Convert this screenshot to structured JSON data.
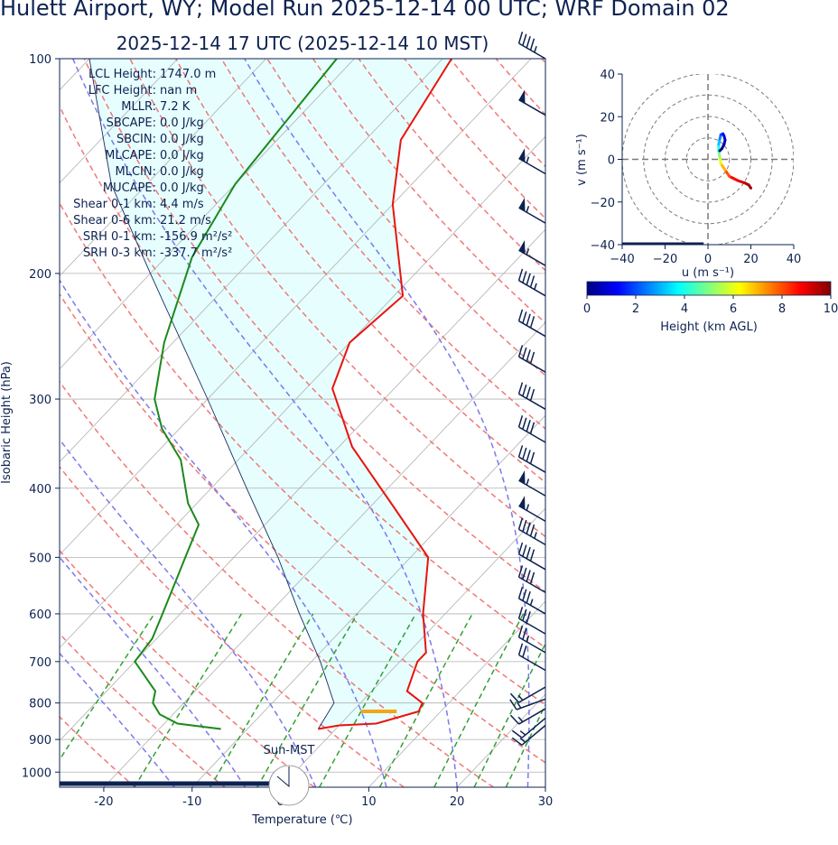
{
  "title": "Hulett Airport, WY; Model Run 2025-12-14 00 UTC; WRF Domain 02",
  "subtitle": "2025-12-14 17 UTC  (2025-12-14 10 MST)",
  "colors": {
    "temperature": "#e8140e",
    "dewpoint": "#1a8a1a",
    "parcel": "#1a2a5e",
    "cape_shade": "#e6fefe",
    "dry_adiabat": "#f07878",
    "moist_adiabat": "#7a7aee",
    "mixing_ratio": "#33a033",
    "isotherm": "#b0b0b0",
    "lcl_marker": "#f2a516",
    "barb": "#0d2250"
  },
  "stats": [
    {
      "label": "LCL Height:",
      "value": "1747.0 m"
    },
    {
      "label": "LFC Height:",
      "value": "nan m"
    },
    {
      "label": "MLLR:",
      "value": "7.2 K"
    },
    {
      "label": "SBCAPE:",
      "value": "0.0 J/kg"
    },
    {
      "label": "SBCIN:",
      "value": "0.0 J/kg"
    },
    {
      "label": "MLCAPE:",
      "value": "0.0 J/kg"
    },
    {
      "label": "MLCIN:",
      "value": "0.0 J/kg"
    },
    {
      "label": "MUCAPE:",
      "value": "0.0 J/kg"
    },
    {
      "label": "Shear 0-1 km:",
      "value": "4.4 m/s"
    },
    {
      "label": "Shear 0-6 km:",
      "value": "21.2 m/s"
    },
    {
      "label": "SRH 0-1 km:",
      "value": "-156.9 m²/s²"
    },
    {
      "label": "SRH 0-3 km:",
      "value": "-337.7 m²/s²"
    }
  ],
  "sun_label": "Sun-MST",
  "chart_data": [
    {
      "type": "line",
      "subtype": "skew-T log-p",
      "xlabel": "Temperature (℃)",
      "ylabel": "Isobaric Height (hPa)",
      "xlim": [
        -25,
        30
      ],
      "ylim": [
        1050,
        100
      ],
      "y_scale": "log",
      "x_ticks": [
        -20,
        -10,
        0,
        10,
        20,
        30
      ],
      "y_ticks": [
        100,
        200,
        300,
        400,
        500,
        600,
        700,
        800,
        900,
        1000
      ],
      "series": [
        {
          "key": "temperature",
          "pressure": [
            100,
            130,
            160,
            215,
            250,
            290,
            350,
            420,
            500,
            600,
            680,
            700,
            770,
            800,
            822,
            855,
            860,
            870
          ],
          "values": [
            -59,
            -56,
            -50,
            -39,
            -40,
            -37,
            -28.5,
            -18,
            -8,
            -2.5,
            2,
            2,
            4,
            7,
            7.5,
            4,
            0,
            -2
          ]
        },
        {
          "key": "dewpoint",
          "pressure": [
            100,
            150,
            190,
            250,
            300,
            330,
            365,
            420,
            450,
            500,
            600,
            650,
            700,
            770,
            800,
            830,
            855,
            870
          ],
          "values": [
            -72,
            -70,
            -67,
            -61,
            -56,
            -52,
            -46.5,
            -41,
            -37.5,
            -35.5,
            -32,
            -30.5,
            -30,
            -24.5,
            -23.5,
            -21.5,
            -18.5,
            -13
          ]
        },
        {
          "key": "parcel",
          "pressure": [
            100,
            150,
            200,
            250,
            300,
            400,
            500,
            600,
            700,
            800,
            870
          ],
          "values": [
            -100,
            -84,
            -70,
            -59,
            -50,
            -36,
            -25,
            -16.5,
            -9,
            -3,
            -2
          ]
        }
      ],
      "lcl": {
        "pressure": 822,
        "temperature_range": [
          1,
          5
        ]
      },
      "winds": [
        {
          "p": 100,
          "spd": 45,
          "dir": 300
        },
        {
          "p": 120,
          "spd": 50,
          "dir": 300
        },
        {
          "p": 145,
          "spd": 55,
          "dir": 300
        },
        {
          "p": 170,
          "spd": 55,
          "dir": 300
        },
        {
          "p": 195,
          "spd": 55,
          "dir": 300
        },
        {
          "p": 215,
          "spd": 45,
          "dir": 300
        },
        {
          "p": 245,
          "spd": 40,
          "dir": 300
        },
        {
          "p": 275,
          "spd": 40,
          "dir": 300
        },
        {
          "p": 310,
          "spd": 40,
          "dir": 300
        },
        {
          "p": 345,
          "spd": 40,
          "dir": 300
        },
        {
          "p": 380,
          "spd": 40,
          "dir": 300
        },
        {
          "p": 410,
          "spd": 55,
          "dir": 300
        },
        {
          "p": 445,
          "spd": 55,
          "dir": 300
        },
        {
          "p": 480,
          "spd": 45,
          "dir": 300
        },
        {
          "p": 520,
          "spd": 40,
          "dir": 300
        },
        {
          "p": 560,
          "spd": 40,
          "dir": 300
        },
        {
          "p": 600,
          "spd": 35,
          "dir": 300
        },
        {
          "p": 640,
          "spd": 30,
          "dir": 300
        },
        {
          "p": 680,
          "spd": 25,
          "dir": 300
        },
        {
          "p": 720,
          "spd": 20,
          "dir": 300
        },
        {
          "p": 760,
          "spd": 15,
          "dir": 240
        },
        {
          "p": 790,
          "spd": 15,
          "dir": 250
        },
        {
          "p": 815,
          "spd": 15,
          "dir": 240
        },
        {
          "p": 840,
          "spd": 15,
          "dir": 230
        },
        {
          "p": 860,
          "spd": 15,
          "dir": 230
        }
      ]
    },
    {
      "type": "line",
      "subtype": "hodograph",
      "xlabel": "u (m s⁻¹)",
      "ylabel": "v (m s⁻¹)",
      "xlim": [
        -40,
        40
      ],
      "ylim": [
        -40,
        40
      ],
      "x_ticks": [
        -40,
        -20,
        0,
        20,
        40
      ],
      "y_ticks": [
        -40,
        -20,
        0,
        20,
        40
      ],
      "rings": [
        10,
        20,
        30,
        40
      ],
      "u": [
        20,
        19,
        17,
        14,
        10,
        8,
        6,
        5.5,
        5,
        5,
        5.5,
        6,
        7,
        7.5,
        8,
        7.5,
        6.5,
        5.5
      ],
      "v": [
        -13.5,
        -12,
        -11,
        -10,
        -8,
        -5,
        -2,
        1,
        4,
        7,
        9.5,
        11.5,
        12,
        11,
        9,
        7,
        5,
        4
      ],
      "height_km": [
        0.2,
        0.4,
        0.6,
        0.9,
        1.5,
        2.5,
        3.5,
        4.5,
        5.5,
        6.5,
        7.2,
        7.8,
        8.4,
        8.8,
        9.2,
        9.5,
        9.8,
        10
      ],
      "colorbar": {
        "label": "Height (km AGL)",
        "ticks": [
          0,
          2,
          4,
          6,
          8,
          10
        ],
        "colormap": "jet"
      }
    }
  ]
}
